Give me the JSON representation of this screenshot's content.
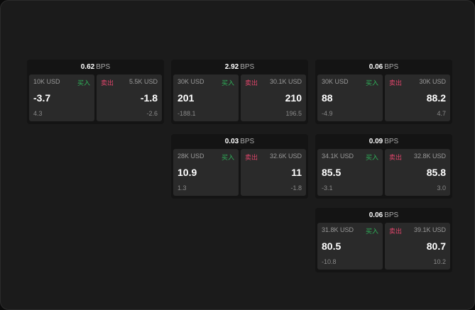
{
  "cards": [
    {
      "bps": "0.62",
      "unit": "BPS",
      "buy_label": "买入",
      "sell_label": "卖出",
      "bid_size": "10K USD",
      "bid": "-3.7",
      "bid_chg": "4.3",
      "ask_size": "5.5K USD",
      "ask": "-1.8",
      "ask_chg": "-2.6"
    },
    {
      "bps": "2.92",
      "unit": "BPS",
      "buy_label": "买入",
      "sell_label": "卖出",
      "bid_size": "30K USD",
      "bid": "201",
      "bid_chg": "-188.1",
      "ask_size": "30.1K USD",
      "ask": "210",
      "ask_chg": "196.5"
    },
    {
      "bps": "0.06",
      "unit": "BPS",
      "buy_label": "买入",
      "sell_label": "卖出",
      "bid_size": "30K USD",
      "bid": "88",
      "bid_chg": "-4.9",
      "ask_size": "30K USD",
      "ask": "88.2",
      "ask_chg": "4.7"
    },
    {
      "bps": "0.03",
      "unit": "BPS",
      "buy_label": "买入",
      "sell_label": "卖出",
      "bid_size": "28K USD",
      "bid": "10.9",
      "bid_chg": "1.3",
      "ask_size": "32.6K USD",
      "ask": "11",
      "ask_chg": "-1.8"
    },
    {
      "bps": "0.09",
      "unit": "BPS",
      "buy_label": "买入",
      "sell_label": "卖出",
      "bid_size": "34.1K USD",
      "bid": "85.5",
      "bid_chg": "-3.1",
      "ask_size": "32.8K USD",
      "ask": "85.8",
      "ask_chg": "3.0"
    },
    {
      "bps": "0.06",
      "unit": "BPS",
      "buy_label": "买入",
      "sell_label": "卖出",
      "bid_size": "31.8K USD",
      "bid": "80.5",
      "bid_chg": "-10.8",
      "ask_size": "39.1K USD",
      "ask": "80.7",
      "ask_chg": "10.2"
    }
  ],
  "colors": {
    "buy": "#2fb35a",
    "sell": "#e0456b"
  }
}
